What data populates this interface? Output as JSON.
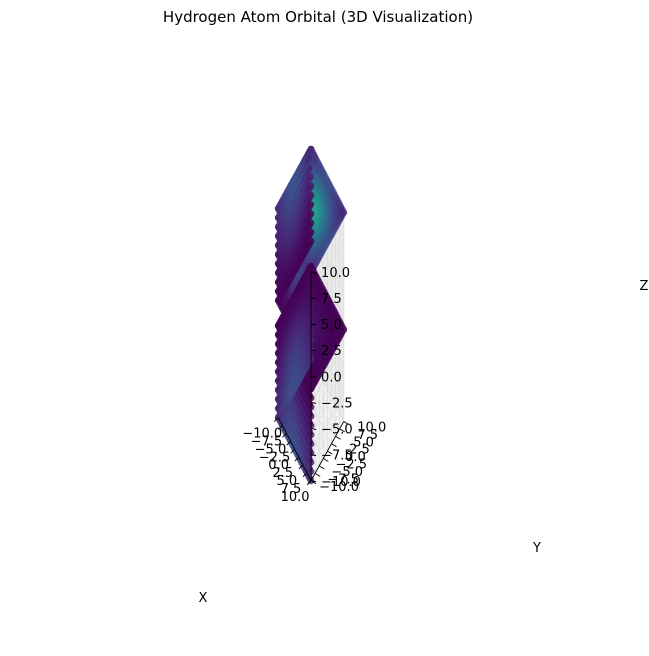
{
  "chart_data": {
    "type": "scatter",
    "projection": "3d",
    "title": "Hydrogen Atom Orbital (3D Visualization)",
    "xlabel": "X",
    "ylabel": "Y",
    "zlabel": "Z",
    "xlim": [
      -10,
      10
    ],
    "ylim": [
      -10,
      10
    ],
    "zlim": [
      -10,
      10
    ],
    "xticks": [
      -10.0,
      -7.5,
      -5.0,
      -2.5,
      0.0,
      2.5,
      5.0,
      7.5,
      10.0
    ],
    "yticks": [
      -10.0,
      -7.5,
      -5.0,
      -2.5,
      0.0,
      2.5,
      5.0,
      7.5,
      10.0
    ],
    "zticks": [
      -10.0,
      -7.5,
      -5.0,
      -2.5,
      0.0,
      2.5,
      5.0,
      7.5,
      10.0
    ],
    "grid": true,
    "colormap": "viridis",
    "color_values": "probability density |psi|^2 (color only)",
    "sampled_grid": {
      "x_range": [
        -10,
        10
      ],
      "y_range": [
        -10,
        10
      ],
      "z_range": [
        -10,
        10
      ]
    },
    "colors": {
      "low": "#440154",
      "mid": "#31688e",
      "high": "#21918c",
      "pane": "#f2f2f2",
      "grid": "#e0e0e0"
    }
  }
}
